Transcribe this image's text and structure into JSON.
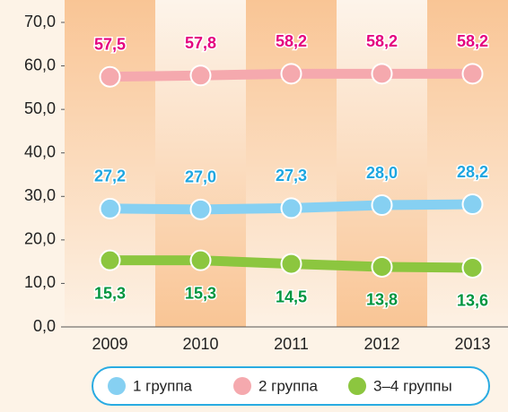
{
  "chart_data": {
    "type": "line",
    "categories": [
      "2009",
      "2010",
      "2011",
      "2012",
      "2013"
    ],
    "series": [
      {
        "name": "1 группа",
        "color": "#86d0f2",
        "label_color": "#1ea6e0",
        "values": [
          27.2,
          27.0,
          27.3,
          28.0,
          28.2
        ],
        "value_labels": [
          "27,2",
          "27,0",
          "27,3",
          "28,0",
          "28,2"
        ],
        "label_position": "above"
      },
      {
        "name": "2 группа",
        "color": "#f5a9ae",
        "label_color": "#e4007f",
        "values": [
          57.5,
          57.8,
          58.2,
          58.2,
          58.2
        ],
        "value_labels": [
          "57,5",
          "57,8",
          "58,2",
          "58,2",
          "58,2"
        ],
        "label_position": "above"
      },
      {
        "name": "3–4 группы",
        "color": "#8cc63f",
        "label_color": "#00953f",
        "values": [
          15.3,
          15.3,
          14.5,
          13.8,
          13.6
        ],
        "value_labels": [
          "15,3",
          "15,3",
          "14,5",
          "13,8",
          "13,6"
        ],
        "label_position": "below"
      }
    ],
    "ylim": [
      0,
      70
    ],
    "yticks": [
      {
        "value": 0,
        "label": "0,0"
      },
      {
        "value": 10,
        "label": "10,0"
      },
      {
        "value": 20,
        "label": "20,0"
      },
      {
        "value": 30,
        "label": "30,0"
      },
      {
        "value": 40,
        "label": "40,0"
      },
      {
        "value": 50,
        "label": "50,0"
      },
      {
        "value": 60,
        "label": "60,0"
      },
      {
        "value": 70,
        "label": "70,0"
      }
    ],
    "legend": "bottom"
  }
}
